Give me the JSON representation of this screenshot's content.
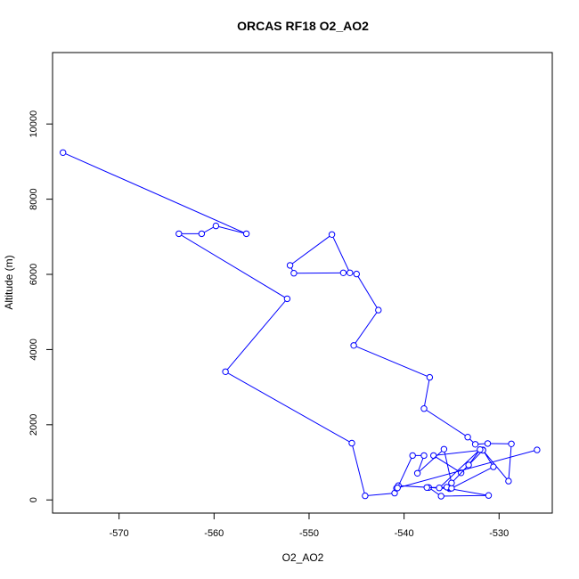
{
  "chart_data": {
    "type": "line",
    "title": "ORCAS RF18 O2_AO2",
    "xlabel": "O2_AO2",
    "ylabel": "Altitude (m)",
    "xlim": [
      -577.0,
      -524.4
    ],
    "ylim": [
      -350,
      11900
    ],
    "x_ticks": [
      -570,
      -560,
      -550,
      -540,
      -530
    ],
    "y_ticks": [
      0,
      2000,
      4000,
      6000,
      8000,
      10000
    ],
    "x_tick_labels": [
      "-570",
      "-560",
      "-550",
      "-540",
      "-530"
    ],
    "y_tick_labels": [
      "0",
      "2000",
      "4000",
      "6000",
      "8000",
      "10000"
    ],
    "series": [
      {
        "color": "#0000ff",
        "marker": "open-circle",
        "x": [
          -575.9,
          -556.6,
          -559.8,
          -561.3,
          -563.7,
          -552.3,
          -558.8,
          -545.5,
          -544.1,
          -541.0,
          -540.8,
          -540.6,
          -535.2,
          -531.1,
          -536.1,
          -537.4,
          -535.3,
          -535.5,
          -535.0,
          -530.6,
          -531.7,
          -536.9,
          -534.0,
          -531.7,
          -529.0,
          -528.7,
          -531.2,
          -532.5,
          -533.3,
          -537.9,
          -537.3,
          -545.3,
          -542.7,
          -545.0,
          -546.4,
          -551.6,
          -552.0,
          -547.6,
          -545.7
        ],
        "y": [
          9240,
          7080,
          7290,
          7080,
          7080,
          5350,
          3410,
          1510,
          110,
          180,
          310,
          380,
          300,
          120,
          100,
          330,
          330,
          340,
          310,
          880,
          1330,
          1180,
          720,
          1320,
          500,
          1490,
          1500,
          1480,
          1670,
          2430,
          3260,
          4110,
          5050,
          6010,
          6040,
          6030,
          6240,
          7060,
          6040
        ]
      },
      {
        "color": "#0000ff",
        "marker": "open-circle",
        "x": [
          -526.0,
          -540.7,
          -539.1,
          -537.9,
          -538.6,
          -535.8,
          -535.0,
          -533.2,
          -532.0,
          -536.3,
          -537.6
        ],
        "y": [
          1330,
          320,
          1180,
          1180,
          710,
          1350,
          450,
          930,
          1340,
          320,
          330
        ]
      }
    ]
  }
}
